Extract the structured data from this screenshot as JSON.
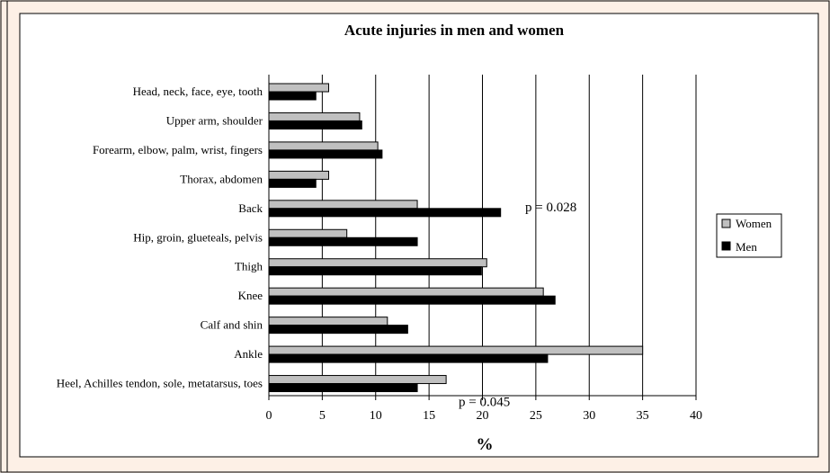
{
  "chart_data": {
    "type": "bar",
    "orientation": "horizontal",
    "title": "Acute injuries in men and women",
    "xlabel": "%",
    "ylabel": "",
    "xlim": [
      0,
      40
    ],
    "xticks": [
      "0",
      "5",
      "10",
      "15",
      "20",
      "25",
      "30",
      "35",
      "40"
    ],
    "grid": "vertical",
    "legend_position": "right",
    "categories": [
      "Head, neck, face, eye, tooth",
      "Upper arm, shoulder",
      "Forearm, elbow, palm, wrist, fingers",
      "Thorax, abdomen",
      "Back",
      "Hip, groin, glueteals, pelvis",
      "Thigh",
      "Knee",
      "Calf and shin",
      "Ankle",
      "Heel, Achilles tendon, sole, metatarsus, toes"
    ],
    "series": [
      {
        "name": "Women",
        "color": "#c0c0c0",
        "values": [
          5.6,
          8.5,
          10.2,
          5.6,
          13.9,
          7.3,
          20.4,
          25.7,
          11.1,
          35.0,
          16.6
        ]
      },
      {
        "name": "Men",
        "color": "#000000",
        "values": [
          4.4,
          8.7,
          10.6,
          4.4,
          21.7,
          13.9,
          19.9,
          26.8,
          13.0,
          26.1,
          13.9
        ]
      }
    ],
    "annotations": [
      {
        "text": "p = 0.028",
        "category_index": 4
      },
      {
        "text": "p = 0.045",
        "category_index": 10
      }
    ]
  }
}
